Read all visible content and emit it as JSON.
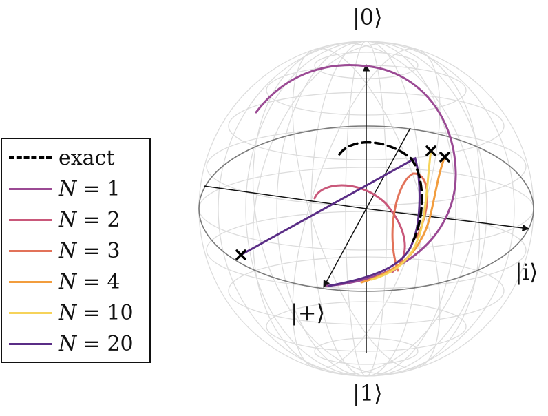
{
  "states": {
    "top": "|0⟩",
    "bottom": "|1⟩",
    "right": "|i⟩",
    "front": "|+⟩"
  },
  "legend": {
    "items": [
      {
        "var": "",
        "text": "exact",
        "color": "#000000",
        "dashed": true
      },
      {
        "var": "N",
        "text": " = 1",
        "color": "#9b4a94",
        "dashed": false
      },
      {
        "var": "N",
        "text": " = 2",
        "color": "#c9587a",
        "dashed": false
      },
      {
        "var": "N",
        "text": " = 3",
        "color": "#e27259",
        "dashed": false
      },
      {
        "var": "N",
        "text": " = 4",
        "color": "#f29d3e",
        "dashed": false
      },
      {
        "var": "N",
        "text": " = 10",
        "color": "#f6d35a",
        "dashed": false
      },
      {
        "var": "N",
        "text": " = 20",
        "color": "#5a2d86",
        "dashed": false
      }
    ]
  }
}
